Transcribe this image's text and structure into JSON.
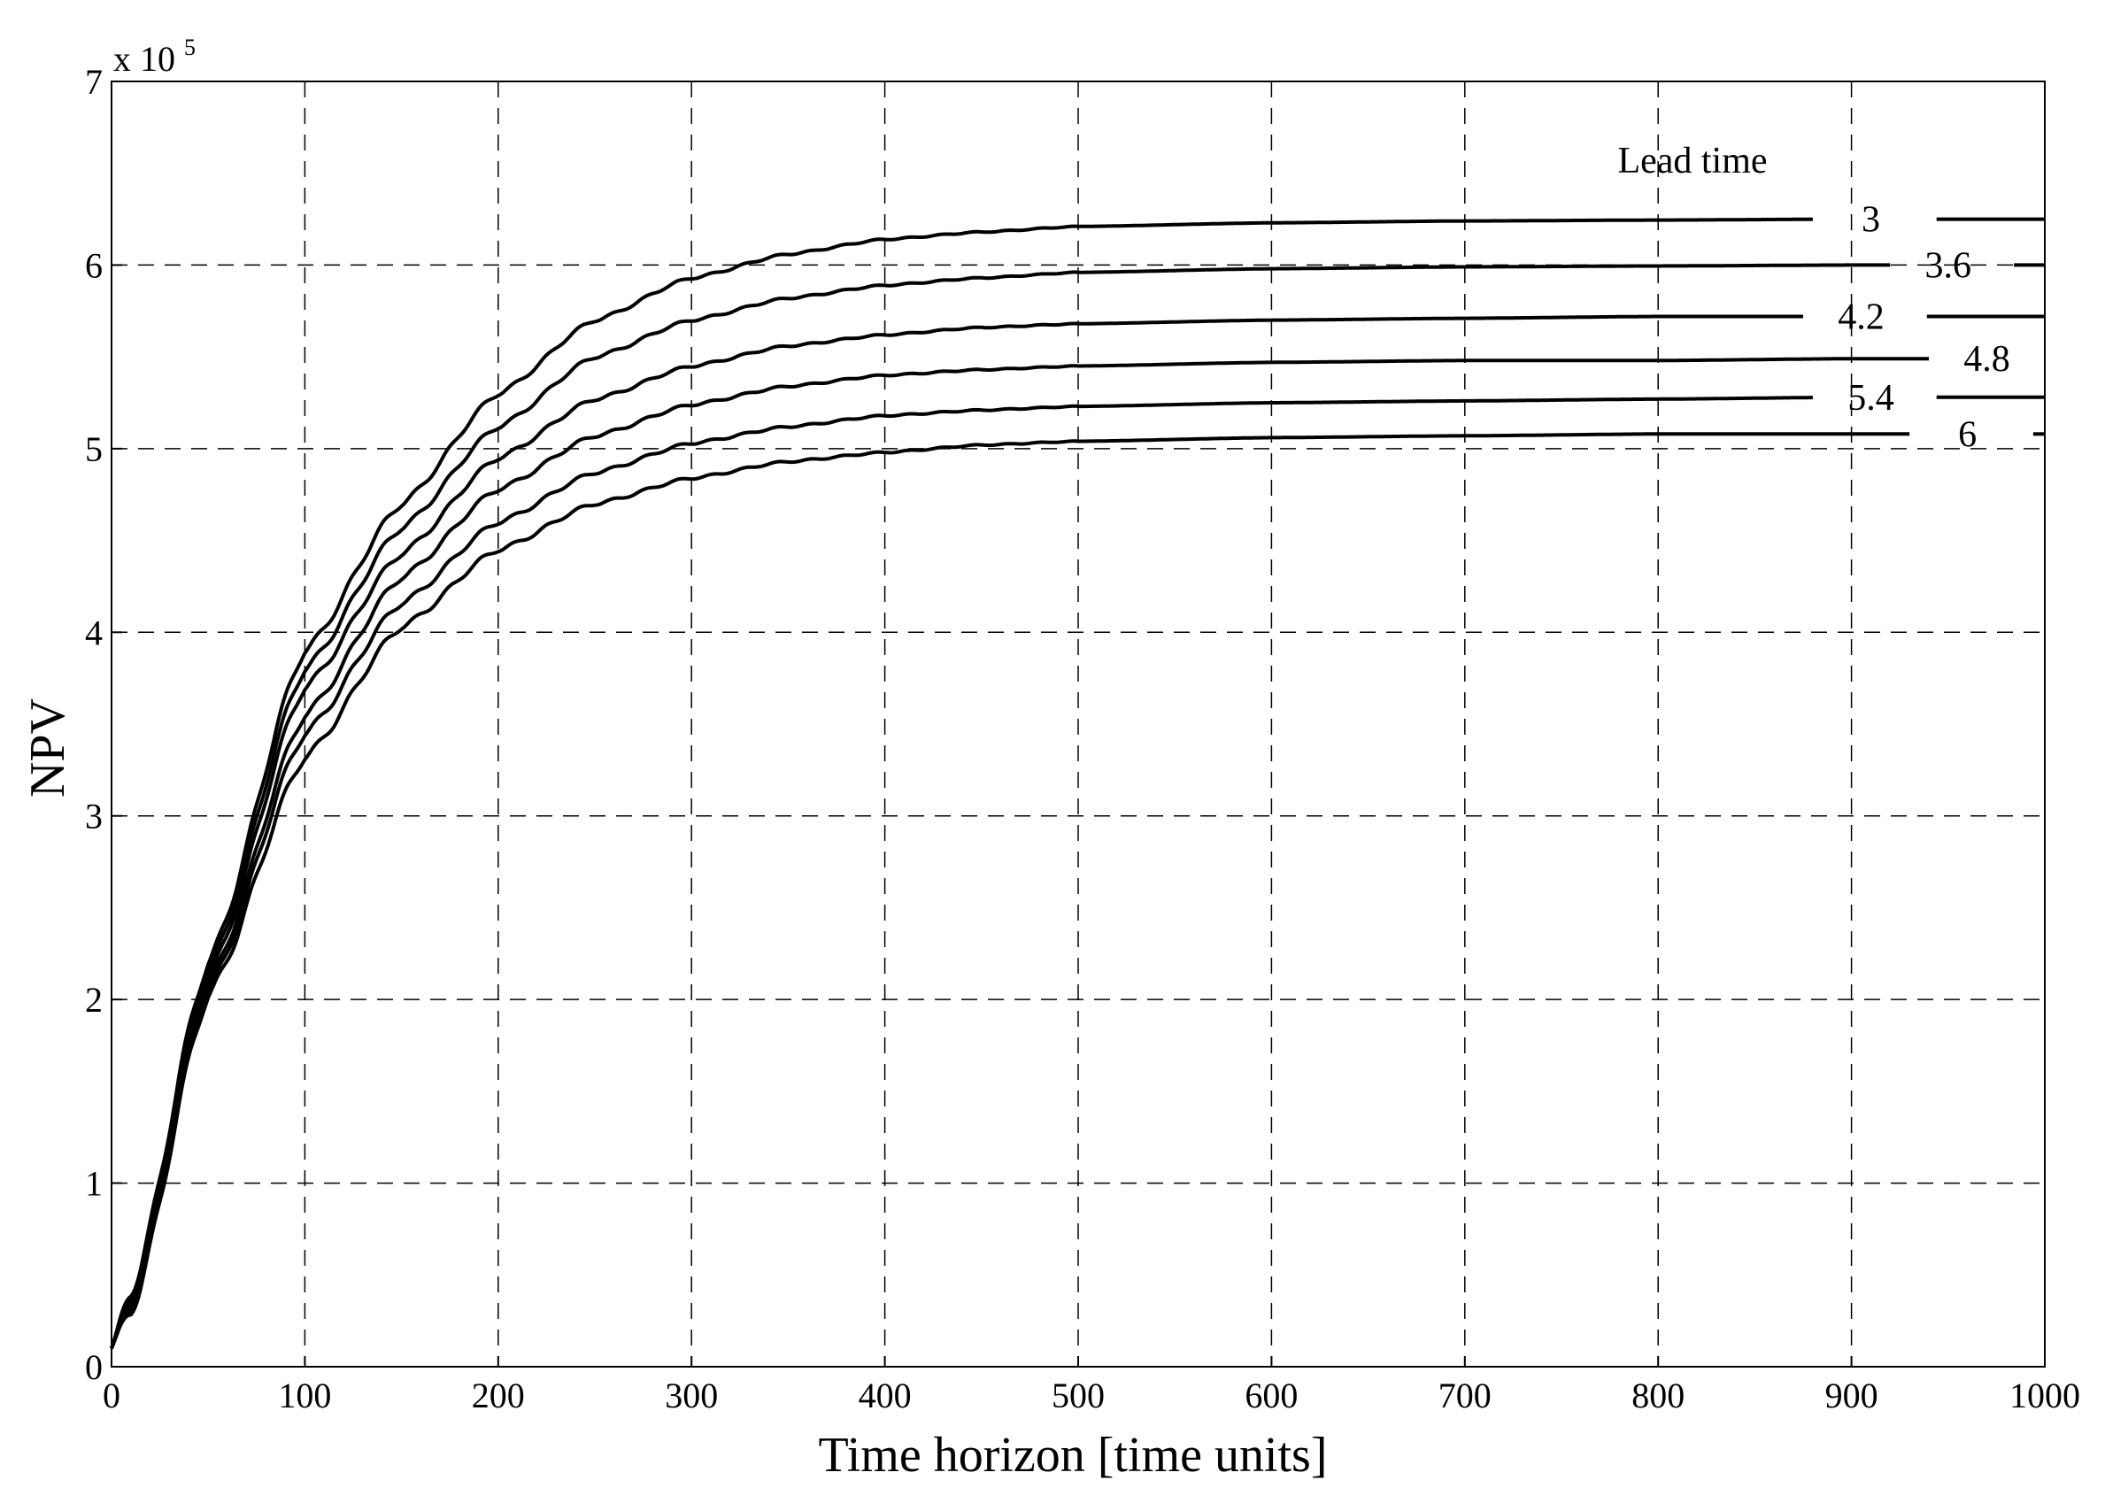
{
  "chart_data": {
    "type": "line",
    "title": "",
    "xlabel": "Time horizon [time units]",
    "ylabel": "NPV",
    "y_multiplier": {
      "base": "x 10",
      "exponent": "5"
    },
    "xlim": [
      0,
      1000
    ],
    "ylim": [
      0,
      7
    ],
    "xticks": [
      0,
      100,
      200,
      300,
      400,
      500,
      600,
      700,
      800,
      900,
      1000
    ],
    "yticks": [
      0,
      1,
      2,
      3,
      4,
      5,
      6,
      7
    ],
    "grid": true,
    "legend_title": "Lead time",
    "series": [
      {
        "name": "3",
        "x": [
          0,
          10,
          50,
          100,
          150,
          200,
          250,
          300,
          350,
          400,
          450,
          500,
          600,
          700,
          800,
          900,
          1000
        ],
        "y": [
          0.1,
          0.4,
          2.2,
          3.9,
          4.7,
          5.3,
          5.7,
          5.93,
          6.06,
          6.14,
          6.18,
          6.21,
          6.23,
          6.24,
          6.245,
          6.25,
          6.25
        ]
      },
      {
        "name": "3.6",
        "x": [
          0,
          10,
          50,
          100,
          150,
          200,
          250,
          300,
          350,
          400,
          450,
          500,
          600,
          700,
          800,
          900,
          1000
        ],
        "y": [
          0.1,
          0.38,
          2.16,
          3.8,
          4.57,
          5.12,
          5.5,
          5.7,
          5.82,
          5.89,
          5.93,
          5.96,
          5.98,
          5.99,
          5.995,
          6.0,
          6.0
        ]
      },
      {
        "name": "4.2",
        "x": [
          0,
          10,
          50,
          100,
          150,
          200,
          250,
          300,
          350,
          400,
          450,
          500,
          600,
          700,
          800,
          900,
          1000
        ],
        "y": [
          0.1,
          0.36,
          2.12,
          3.7,
          4.43,
          4.95,
          5.27,
          5.45,
          5.56,
          5.62,
          5.66,
          5.68,
          5.7,
          5.71,
          5.72,
          5.72,
          5.72
        ]
      },
      {
        "name": "4.8",
        "x": [
          0,
          10,
          50,
          100,
          150,
          200,
          250,
          300,
          350,
          400,
          450,
          500,
          600,
          700,
          800,
          900,
          1000
        ],
        "y": [
          0.1,
          0.34,
          2.08,
          3.55,
          4.3,
          4.78,
          5.07,
          5.24,
          5.34,
          5.4,
          5.43,
          5.45,
          5.47,
          5.48,
          5.48,
          5.49,
          5.49
        ]
      },
      {
        "name": "5.4",
        "x": [
          0,
          10,
          50,
          100,
          150,
          200,
          250,
          300,
          350,
          400,
          450,
          500,
          600,
          700,
          800,
          900,
          1000
        ],
        "y": [
          0.1,
          0.32,
          2.05,
          3.45,
          4.16,
          4.6,
          4.87,
          5.03,
          5.12,
          5.18,
          5.21,
          5.23,
          5.25,
          5.26,
          5.27,
          5.28,
          5.28
        ]
      },
      {
        "name": "6",
        "x": [
          0,
          10,
          50,
          100,
          150,
          200,
          250,
          300,
          350,
          400,
          450,
          500,
          600,
          700,
          800,
          900,
          1000
        ],
        "y": [
          0.1,
          0.3,
          2.02,
          3.32,
          4.03,
          4.45,
          4.7,
          4.84,
          4.93,
          4.98,
          5.02,
          5.04,
          5.06,
          5.07,
          5.08,
          5.08,
          5.08
        ]
      }
    ]
  }
}
